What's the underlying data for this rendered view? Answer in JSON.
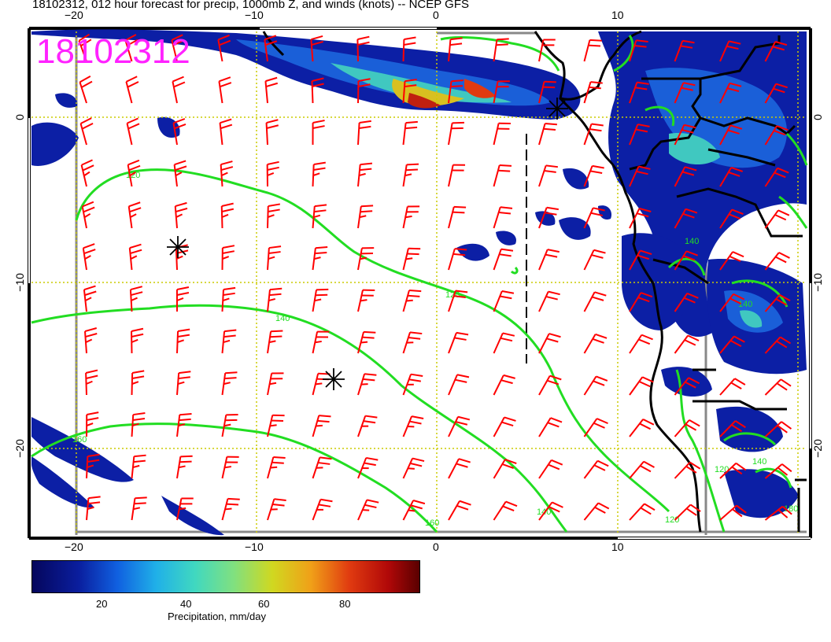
{
  "title": "18102312, 012 hour forecast for precip, 1000mb Z, and winds (knots) -- NCEP GFS",
  "stamp": "18102312",
  "axes": {
    "lon_ticks": [
      "−20",
      "−10",
      "0",
      "10"
    ],
    "lat_ticks": [
      "0",
      "−10",
      "−20"
    ]
  },
  "contour_labels": [
    "120",
    "140",
    "160",
    "120",
    "140",
    "160",
    "140",
    "120",
    "180",
    "140",
    "120",
    "140"
  ],
  "colorbar": {
    "title": "Precipitation, mm/day",
    "ticks": [
      "20",
      "40",
      "60",
      "80"
    ]
  },
  "colors": {
    "barbs": "#ff0000",
    "contours": "#22dd22",
    "grid": "#cccc00",
    "coast": "#000000",
    "stamp": "#ff22ff"
  }
}
